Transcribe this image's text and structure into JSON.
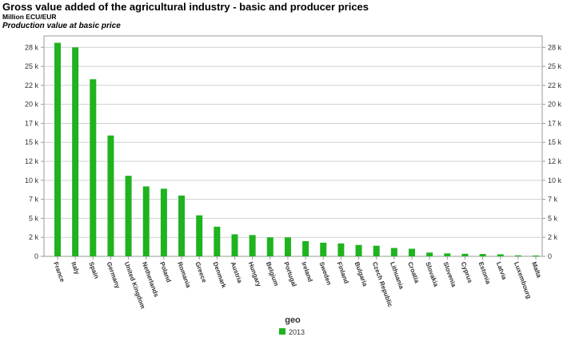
{
  "chart_data": {
    "type": "bar",
    "title": "Gross value added of the agricultural industry - basic and producer prices",
    "subtitle": "Million ECU/EUR",
    "subtitle2": "Production value at basic price",
    "xlabel": "geo",
    "ylabel": "",
    "ylim": [
      0,
      29000
    ],
    "yticks": [
      0,
      2500,
      5000,
      7500,
      10000,
      12500,
      15000,
      17500,
      20000,
      22500,
      25000,
      27500
    ],
    "yticklabels": [
      "0",
      "2 k",
      "5 k",
      "7 k",
      "10 k",
      "12 k",
      "15 k",
      "17 k",
      "20 k",
      "22 k",
      "25 k",
      "28 k"
    ],
    "grid": true,
    "legend_position": "bottom-center",
    "color": "#1fb31f",
    "categories": [
      "France",
      "Italy",
      "Spain",
      "Germany",
      "United Kingdom",
      "Netherlands",
      "Poland",
      "Romania",
      "Greece",
      "Denmark",
      "Austria",
      "Hungary",
      "Belgium",
      "Portugal",
      "Ireland",
      "Sweden",
      "Finland",
      "Bulgaria",
      "Czech Republic",
      "Lithuania",
      "Croatia",
      "Slovakia",
      "Slovenia",
      "Cyprus",
      "Estonia",
      "Latvia",
      "Luxembourg",
      "Malta"
    ],
    "series": [
      {
        "name": "2013",
        "values": [
          28100,
          27500,
          23300,
          15900,
          10600,
          9200,
          8900,
          8000,
          5400,
          3900,
          2900,
          2800,
          2500,
          2500,
          2000,
          1800,
          1700,
          1500,
          1400,
          1100,
          1000,
          500,
          390,
          340,
          310,
          270,
          130,
          110
        ]
      }
    ]
  }
}
